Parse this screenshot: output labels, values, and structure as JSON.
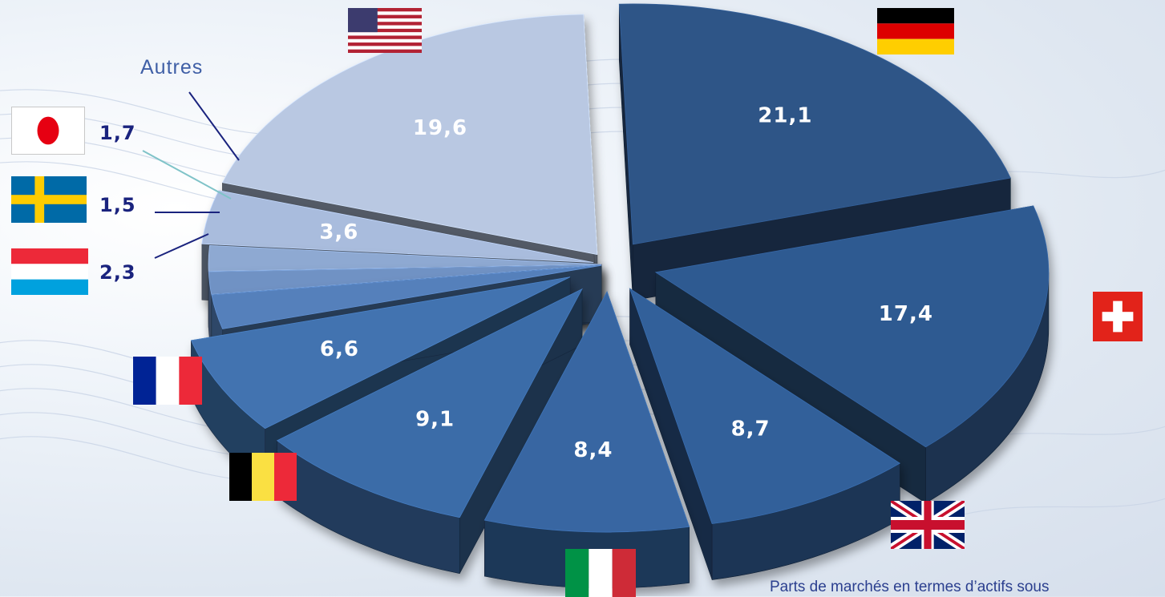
{
  "chart_data": {
    "type": "pie",
    "title": "",
    "slices": [
      {
        "label": "",
        "display": "21,1",
        "value": 21.1,
        "color": "#2d5487",
        "country": "Germany"
      },
      {
        "label": "",
        "display": "17,4",
        "value": 17.4,
        "color": "#2f5a91",
        "country": "Switzerland"
      },
      {
        "label": "",
        "display": "8,7",
        "value": 8.7,
        "color": "#32609a",
        "country": "United Kingdom"
      },
      {
        "label": "",
        "display": "8,4",
        "value": 8.4,
        "color": "#3766a2",
        "country": "Italy"
      },
      {
        "label": "",
        "display": "9,1",
        "value": 9.1,
        "color": "#3b6ca8",
        "country": "Belgium"
      },
      {
        "label": "",
        "display": "6,6",
        "value": 6.6,
        "color": "#4273b0",
        "country": "France"
      },
      {
        "label": "",
        "display": "2,3",
        "value": 2.3,
        "color": "#5580bb",
        "country": "Luxembourg"
      },
      {
        "label": "",
        "display": "1,5",
        "value": 1.5,
        "color": "#6f92c4",
        "country": "Sweden"
      },
      {
        "label": "",
        "display": "1,7",
        "value": 1.7,
        "color": "#8ea9d2",
        "country": "Japan"
      },
      {
        "label": "Autres",
        "display": "3,6",
        "value": 3.6,
        "color": "#a9bcdd",
        "country": "Other"
      },
      {
        "label": "",
        "display": "19,6",
        "value": 19.6,
        "color": "#b9c8e2",
        "country": "United States"
      }
    ],
    "legend": "none",
    "grid": false
  },
  "annotations": {
    "autres_label": "Autres",
    "japan_value": "1,7",
    "sweden_value": "1,5",
    "luxembourg_value": "2,3"
  },
  "footer_note": "Parts de marchés en termes d’actifs sous",
  "flags": [
    "usa-flag-icon",
    "germany-flag-icon",
    "switzerland-flag-icon",
    "uk-flag-icon",
    "italy-flag-icon",
    "belgium-flag-icon",
    "france-flag-icon",
    "luxembourg-flag-icon",
    "sweden-flag-icon",
    "japan-flag-icon"
  ]
}
